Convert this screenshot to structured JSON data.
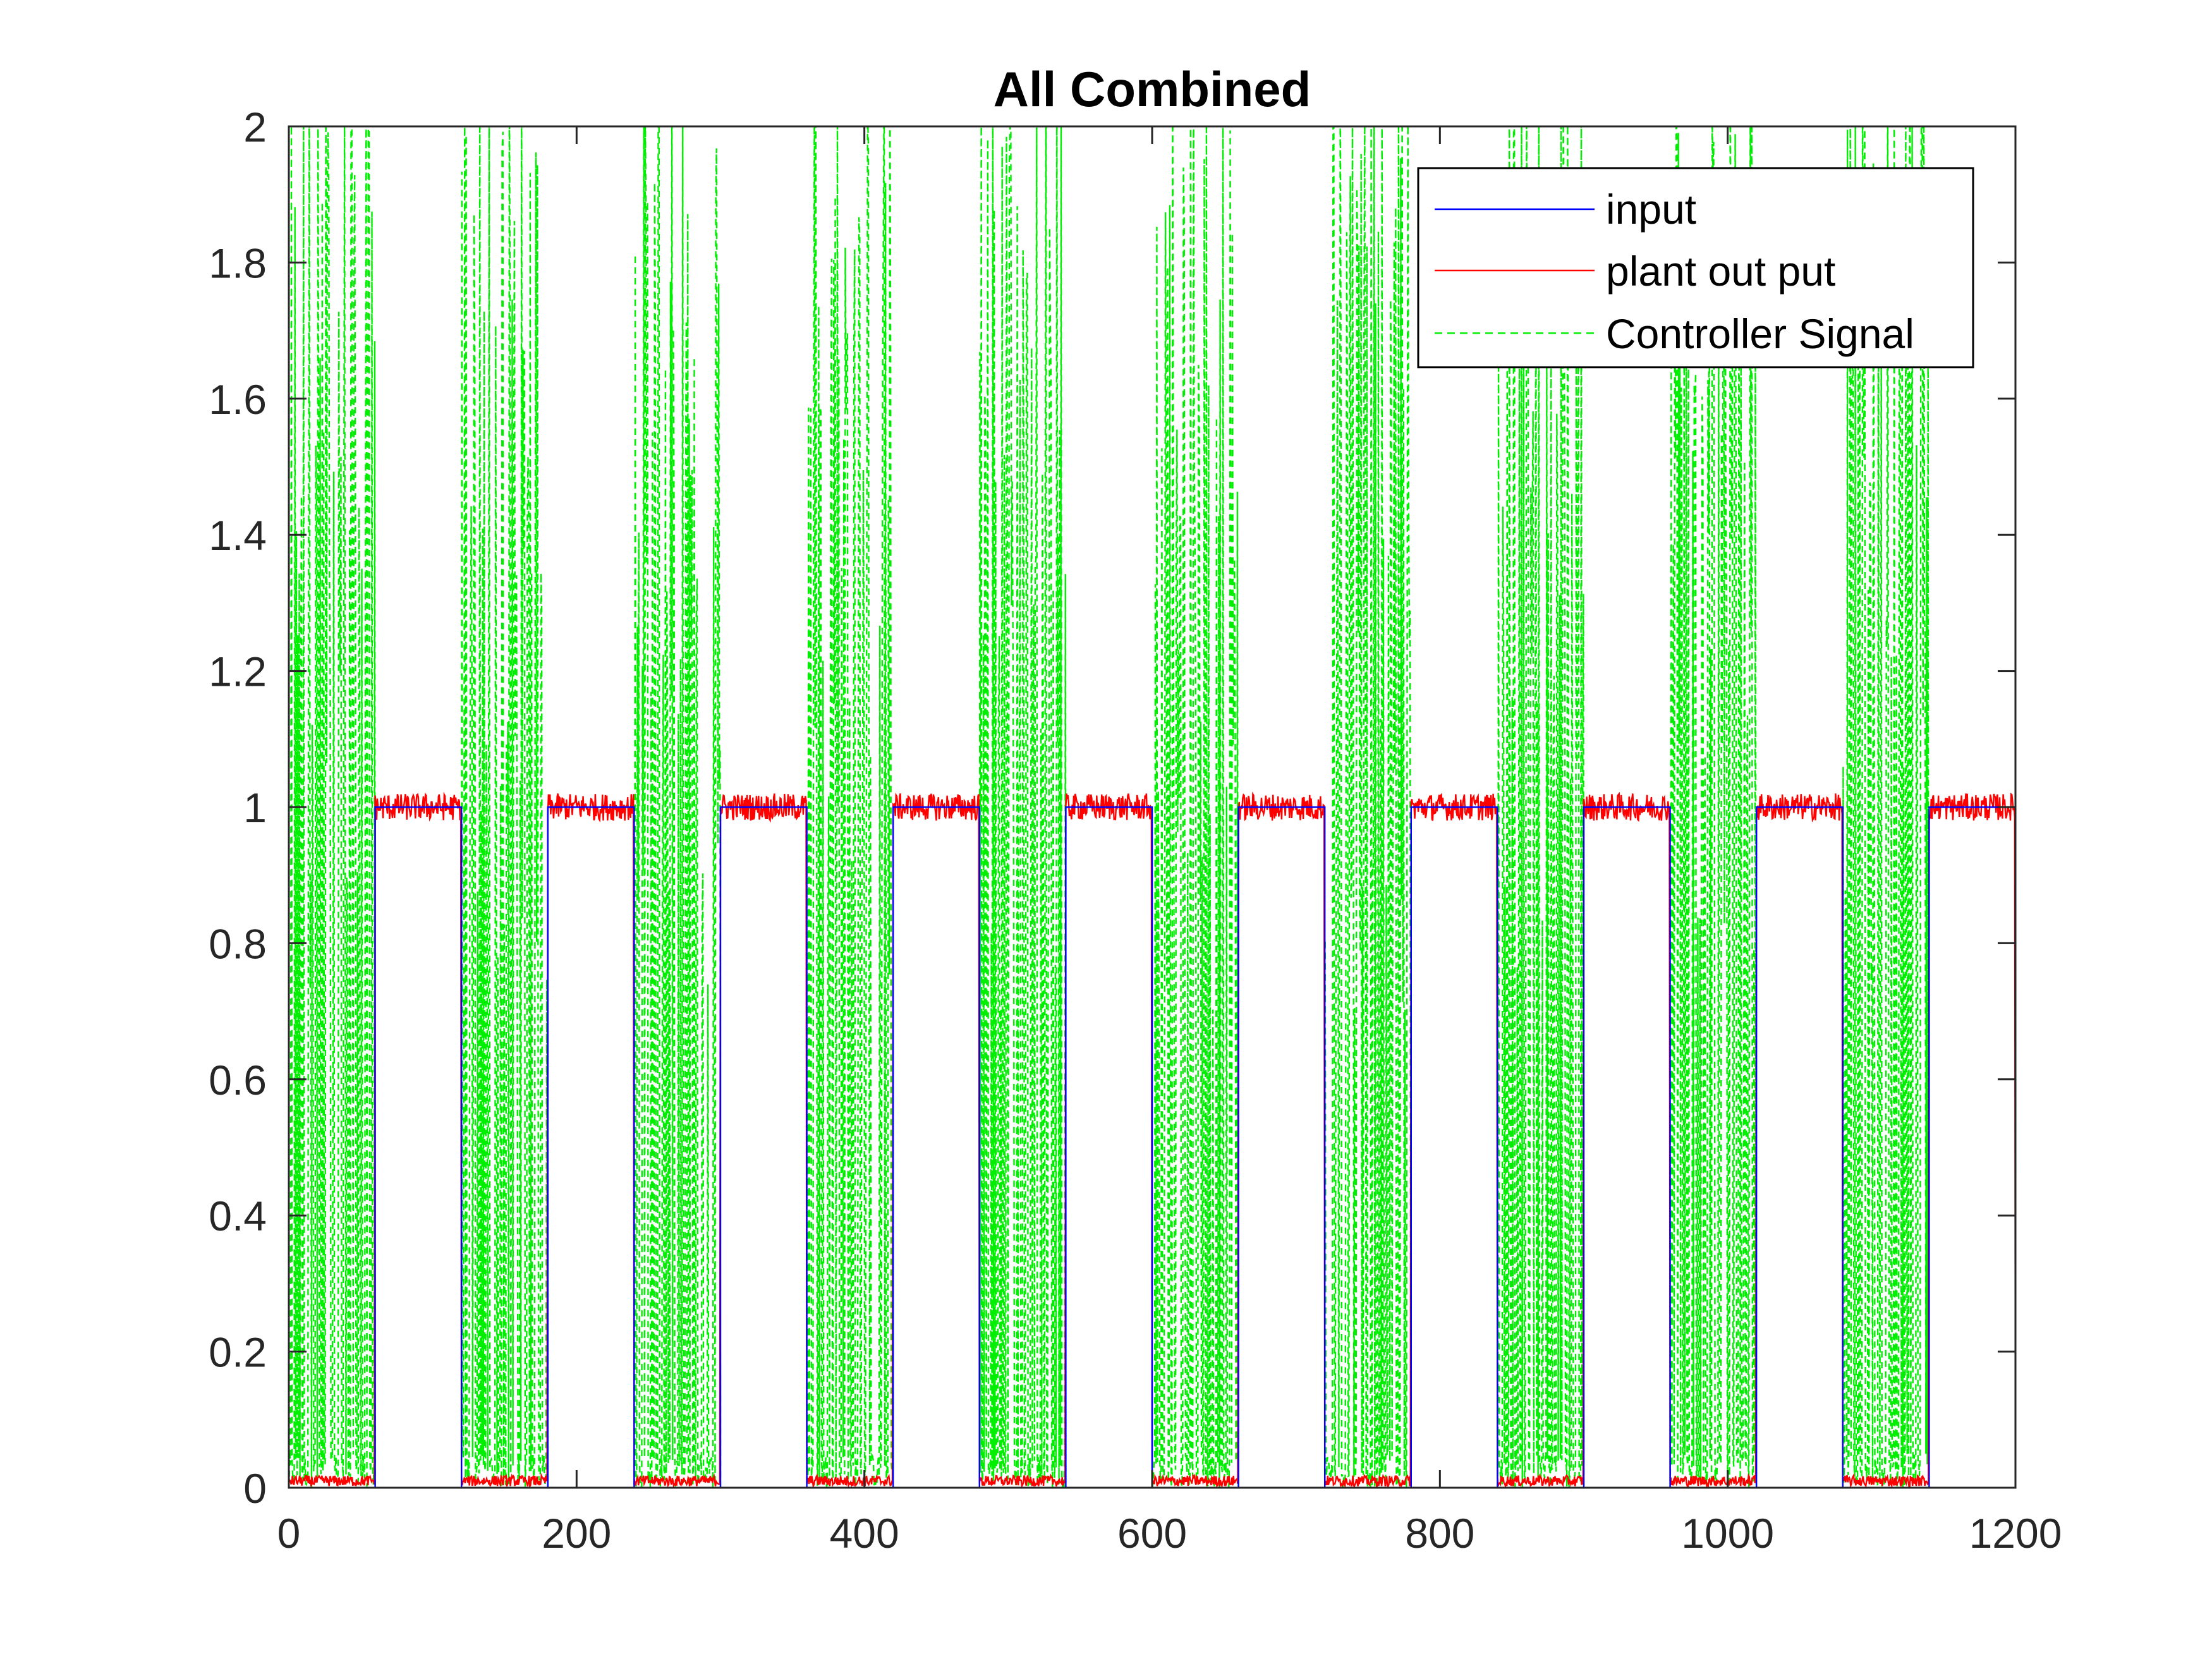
{
  "chart_data": {
    "type": "line",
    "title": "All Combined",
    "xlabel": "",
    "ylabel": "",
    "xlim": [
      0,
      1200
    ],
    "ylim": [
      0,
      2
    ],
    "xticks": [
      0,
      200,
      400,
      600,
      800,
      1000,
      1200
    ],
    "yticks": [
      0,
      0.2,
      0.4,
      0.6,
      0.8,
      1,
      1.2,
      1.4,
      1.6,
      1.8,
      2
    ],
    "xtick_labels": [
      "0",
      "200",
      "400",
      "600",
      "800",
      "1000",
      "1200"
    ],
    "ytick_labels": [
      "0",
      "0.2",
      "0.4",
      "0.6",
      "0.8",
      "1",
      "1.2",
      "1.4",
      "1.6",
      "1.8",
      "2"
    ],
    "grid": false,
    "legend_position": "top-right",
    "square_wave": {
      "period": 120,
      "high_start_offset": 60,
      "high_end_offset": 120,
      "low_value": 0,
      "high_value": 1
    },
    "series": [
      {
        "name": "input",
        "color": "#0000ff",
        "style": "solid",
        "x": [
          0,
          60,
          60,
          120,
          120,
          180,
          180,
          240,
          240,
          300,
          300,
          360,
          360,
          420,
          420,
          480,
          480,
          540,
          540,
          600,
          600,
          660,
          660,
          720,
          720,
          780,
          780,
          840,
          840,
          900,
          900,
          960,
          960,
          1020,
          1020,
          1080,
          1080,
          1140,
          1140,
          1200
        ],
        "y": [
          0,
          0,
          1,
          1,
          0,
          0,
          1,
          1,
          0,
          0,
          1,
          1,
          0,
          0,
          1,
          1,
          0,
          0,
          1,
          1,
          0,
          0,
          1,
          1,
          0,
          0,
          1,
          1,
          0,
          0,
          1,
          1,
          0,
          0,
          1,
          1,
          0,
          0,
          1,
          1
        ]
      },
      {
        "name": "plant out put",
        "color": "#ff0000",
        "style": "solid",
        "low_level": 0.01,
        "high_level": 1.0,
        "noise_amplitude": 0.02
      },
      {
        "name": "Controller Signal",
        "color": "#00ee00",
        "style": "dashed",
        "active_during": "low phase of input",
        "range": [
          0,
          2
        ]
      }
    ]
  }
}
